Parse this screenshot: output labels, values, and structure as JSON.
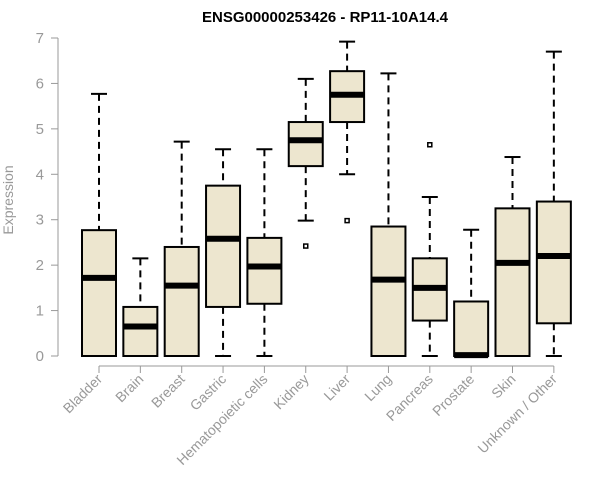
{
  "chart_data": {
    "type": "boxplot",
    "title": "ENSG00000253426 - RP11-10A14.4",
    "xlabel": "",
    "ylabel": "Expression",
    "ylim": [
      0,
      7
    ],
    "yticks": [
      0,
      1,
      2,
      3,
      4,
      5,
      6,
      7
    ],
    "grid": false,
    "categories": [
      "Bladder",
      "Brain",
      "Breast",
      "Gastric",
      "Hematopoietic cells",
      "Kidney",
      "Liver",
      "Lung",
      "Pancreas",
      "Prostate",
      "Skin",
      "Unknown / Other"
    ],
    "series": [
      {
        "name": "Bladder",
        "min": 0,
        "q1": 0,
        "median": 1.72,
        "q3": 2.77,
        "max": 5.77,
        "outliers": []
      },
      {
        "name": "Brain",
        "min": 0,
        "q1": 0,
        "median": 0.65,
        "q3": 1.08,
        "max": 2.15,
        "outliers": []
      },
      {
        "name": "Breast",
        "min": 0,
        "q1": 0,
        "median": 1.55,
        "q3": 2.4,
        "max": 4.72,
        "outliers": []
      },
      {
        "name": "Gastric",
        "min": 0,
        "q1": 1.08,
        "median": 2.58,
        "q3": 3.75,
        "max": 4.55,
        "outliers": []
      },
      {
        "name": "Hematopoietic cells",
        "min": 0,
        "q1": 1.15,
        "median": 1.97,
        "q3": 2.6,
        "max": 4.55,
        "outliers": []
      },
      {
        "name": "Kidney",
        "min": 2.98,
        "q1": 4.18,
        "median": 4.75,
        "q3": 5.15,
        "max": 6.1,
        "outliers": [
          2.42
        ]
      },
      {
        "name": "Liver",
        "min": 4.0,
        "q1": 5.15,
        "median": 5.75,
        "q3": 6.27,
        "max": 6.92,
        "outliers": [
          2.98
        ]
      },
      {
        "name": "Lung",
        "min": 0,
        "q1": 0,
        "median": 1.68,
        "q3": 2.85,
        "max": 6.22,
        "outliers": []
      },
      {
        "name": "Pancreas",
        "min": 0,
        "q1": 0.78,
        "median": 1.5,
        "q3": 2.15,
        "max": 3.5,
        "outliers": [
          4.65
        ]
      },
      {
        "name": "Prostate",
        "min": 0,
        "q1": 0,
        "median": 0.02,
        "q3": 1.2,
        "max": 2.78,
        "outliers": []
      },
      {
        "name": "Skin",
        "min": 0,
        "q1": 0,
        "median": 2.05,
        "q3": 3.25,
        "max": 4.38,
        "outliers": []
      },
      {
        "name": "Unknown / Other",
        "min": 0,
        "q1": 0.72,
        "median": 2.2,
        "q3": 3.4,
        "max": 6.7,
        "outliers": []
      }
    ]
  }
}
